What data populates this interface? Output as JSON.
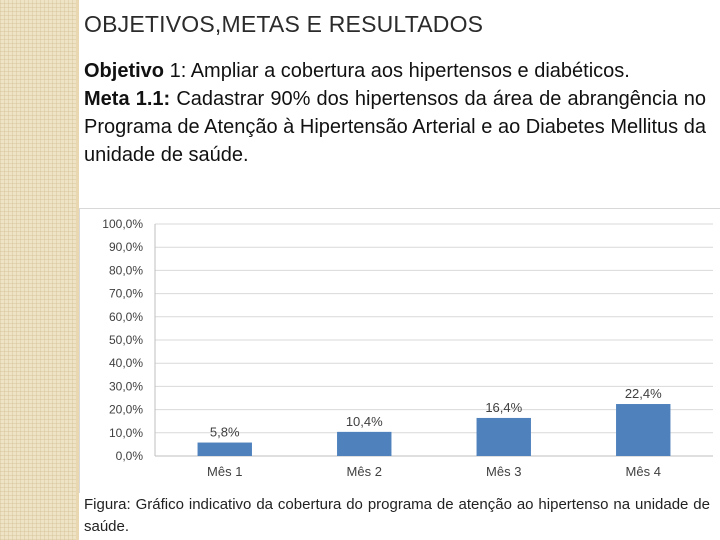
{
  "slide": {
    "title": "OBJETIVOS,METAS E RESULTADOS",
    "objective_label": "Objetivo",
    "objective_number": "1",
    "objective_text": ": Ampliar a cobertura aos hipertensos e diabéticos.",
    "meta_label": "Meta 1.1:",
    "meta_text": " Cadastrar 90% dos hipertensos da área de abrangência no Programa de Atenção à Hipertensão Arterial e ao Diabetes Mellitus da unidade de saúde.",
    "caption": "Figura: Gráfico indicativo da cobertura do programa de atenção ao hipertenso na unidade de saúde."
  },
  "colors": {
    "bar": "#4f81bd",
    "grid": "#d9d9d9",
    "text": "#404040"
  },
  "chart_data": {
    "type": "bar",
    "categories": [
      "Mês 1",
      "Mês 2",
      "Mês 3",
      "Mês 4"
    ],
    "values": [
      5.8,
      10.4,
      16.4,
      22.4
    ],
    "data_labels": [
      "5,8%",
      "10,4%",
      "16,4%",
      "22,4%"
    ],
    "y_ticks": [
      "0,0%",
      "10,0%",
      "20,0%",
      "30,0%",
      "40,0%",
      "50,0%",
      "60,0%",
      "70,0%",
      "80,0%",
      "90,0%",
      "100,0%"
    ],
    "ylim": [
      0,
      100
    ],
    "title": "",
    "xlabel": "",
    "ylabel": "",
    "grid": true,
    "legend": "none"
  }
}
